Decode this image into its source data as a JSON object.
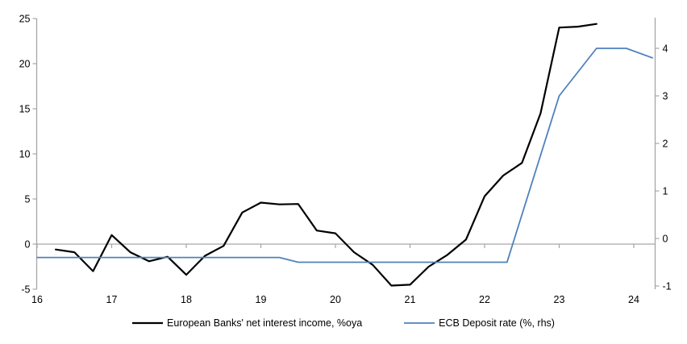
{
  "chart_data": {
    "type": "line",
    "title": "",
    "x_axis": {
      "ticks": [
        16,
        17,
        18,
        19,
        20,
        21,
        22,
        23,
        24
      ],
      "min": 16,
      "max": 24.35,
      "grid": false
    },
    "y_left_axis": {
      "ticks": [
        25,
        20,
        15,
        10,
        5,
        0,
        -5
      ],
      "min": -5,
      "max": 25,
      "zero_gridline": true
    },
    "y_right_axis": {
      "ticks": [
        4,
        3,
        2,
        1,
        0,
        -1
      ],
      "min": -1.1,
      "max": 4.6
    },
    "legend_position": "bottom-center",
    "series": [
      {
        "name": "European Banks' net interest income, %oya",
        "axis": "left",
        "color": "#000000",
        "width": 2.2,
        "points": [
          [
            16.25,
            -0.6
          ],
          [
            16.5,
            -0.9
          ],
          [
            16.75,
            -3.0
          ],
          [
            17.0,
            1.0
          ],
          [
            17.25,
            -0.9
          ],
          [
            17.5,
            -1.9
          ],
          [
            17.75,
            -1.4
          ],
          [
            18.0,
            -3.4
          ],
          [
            18.25,
            -1.3
          ],
          [
            18.5,
            -0.2
          ],
          [
            18.75,
            3.5
          ],
          [
            19.0,
            4.6
          ],
          [
            19.25,
            4.4
          ],
          [
            19.5,
            4.45
          ],
          [
            19.75,
            1.5
          ],
          [
            20.0,
            1.2
          ],
          [
            20.25,
            -0.9
          ],
          [
            20.5,
            -2.3
          ],
          [
            20.75,
            -4.6
          ],
          [
            21.0,
            -4.5
          ],
          [
            21.25,
            -2.5
          ],
          [
            21.5,
            -1.2
          ],
          [
            21.75,
            0.5
          ],
          [
            22.0,
            5.3
          ],
          [
            22.25,
            7.6
          ],
          [
            22.5,
            9.0
          ],
          [
            22.75,
            14.5
          ],
          [
            23.0,
            24.0
          ],
          [
            23.25,
            24.1
          ],
          [
            23.5,
            24.4
          ]
        ]
      },
      {
        "name": "ECB Deposit rate (%, rhs)",
        "axis": "right",
        "color": "#4f81bd",
        "width": 1.8,
        "points": [
          [
            16.0,
            -0.4
          ],
          [
            19.25,
            -0.4
          ],
          [
            19.5,
            -0.5
          ],
          [
            22.3,
            -0.5
          ],
          [
            23.0,
            3.0
          ],
          [
            23.5,
            4.0
          ],
          [
            23.9,
            4.0
          ],
          [
            24.25,
            3.8
          ]
        ]
      }
    ]
  },
  "colors": {
    "axis": "#a6a6a6",
    "gridline": "#a6a6a6",
    "text": "#000000",
    "background": "#ffffff",
    "series_black": "#000000",
    "series_blue": "#4f81bd"
  }
}
